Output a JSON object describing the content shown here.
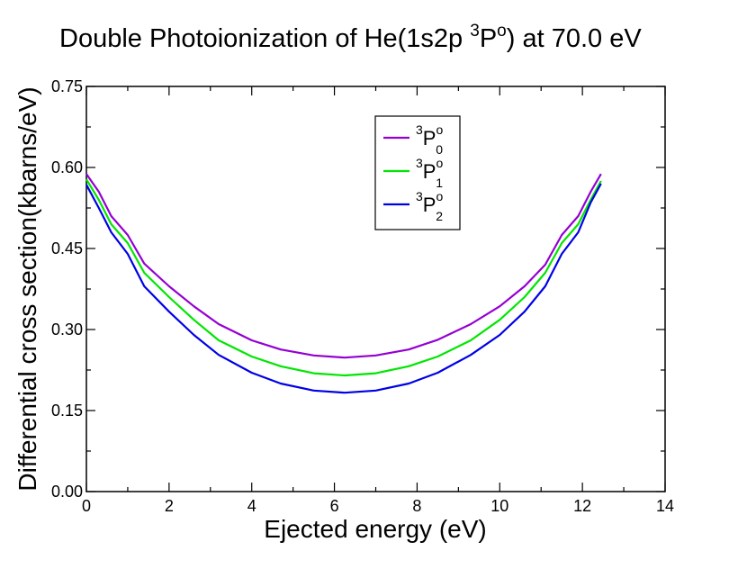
{
  "chart_data": {
    "type": "line",
    "title": {
      "prefix": "Double Photoionization of He(1s2p ",
      "sup_left": "3",
      "main": "P",
      "sup_right": "o",
      "suffix": ") at 70.0 eV"
    },
    "xlabel": "Ejected energy (eV)",
    "ylabel": "Differential cross section(kbarns/eV)",
    "xlim": [
      0,
      14
    ],
    "ylim": [
      0,
      0.75
    ],
    "x_ticks": [
      0,
      2,
      4,
      6,
      8,
      10,
      12,
      14
    ],
    "y_ticks": [
      0.0,
      0.15,
      0.3,
      0.45,
      0.6,
      0.75
    ],
    "x_tick_labels": [
      "0",
      "2",
      "4",
      "6",
      "8",
      "10",
      "12",
      "14"
    ],
    "y_tick_labels": [
      "0.00",
      "0.15",
      "0.30",
      "0.45",
      "0.60",
      "0.75"
    ],
    "x": [
      0.0,
      0.3,
      0.6,
      1.0,
      1.4,
      2.0,
      2.6,
      3.2,
      4.0,
      4.7,
      5.5,
      6.25,
      7.0,
      7.8,
      8.5,
      9.3,
      10.0,
      10.6,
      11.1,
      11.5,
      11.9,
      12.2,
      12.45
    ],
    "series": [
      {
        "name": "3Po0",
        "label_sup": "3",
        "label_main": "P",
        "label_sup2": "o",
        "label_sub": "0",
        "color": "#9400d3",
        "values": [
          0.588,
          0.555,
          0.51,
          0.475,
          0.422,
          0.38,
          0.343,
          0.31,
          0.28,
          0.263,
          0.252,
          0.248,
          0.252,
          0.263,
          0.281,
          0.31,
          0.343,
          0.38,
          0.42,
          0.475,
          0.51,
          0.555,
          0.588
        ]
      },
      {
        "name": "3Po1",
        "label_sup": "3",
        "label_main": "P",
        "label_sup2": "o",
        "label_sub": "1",
        "color": "#00e600",
        "values": [
          0.578,
          0.54,
          0.495,
          0.46,
          0.405,
          0.36,
          0.318,
          0.28,
          0.25,
          0.232,
          0.219,
          0.215,
          0.219,
          0.232,
          0.25,
          0.28,
          0.318,
          0.36,
          0.405,
          0.46,
          0.495,
          0.54,
          0.575
        ]
      },
      {
        "name": "3Po2",
        "label_sup": "3",
        "label_main": "P",
        "label_sup2": "o",
        "label_sub": "2",
        "color": "#0000e6",
        "values": [
          0.568,
          0.525,
          0.48,
          0.44,
          0.38,
          0.333,
          0.29,
          0.253,
          0.22,
          0.2,
          0.187,
          0.183,
          0.187,
          0.2,
          0.22,
          0.253,
          0.29,
          0.333,
          0.38,
          0.44,
          0.48,
          0.535,
          0.57
        ]
      }
    ],
    "legend_position": "top-center"
  }
}
